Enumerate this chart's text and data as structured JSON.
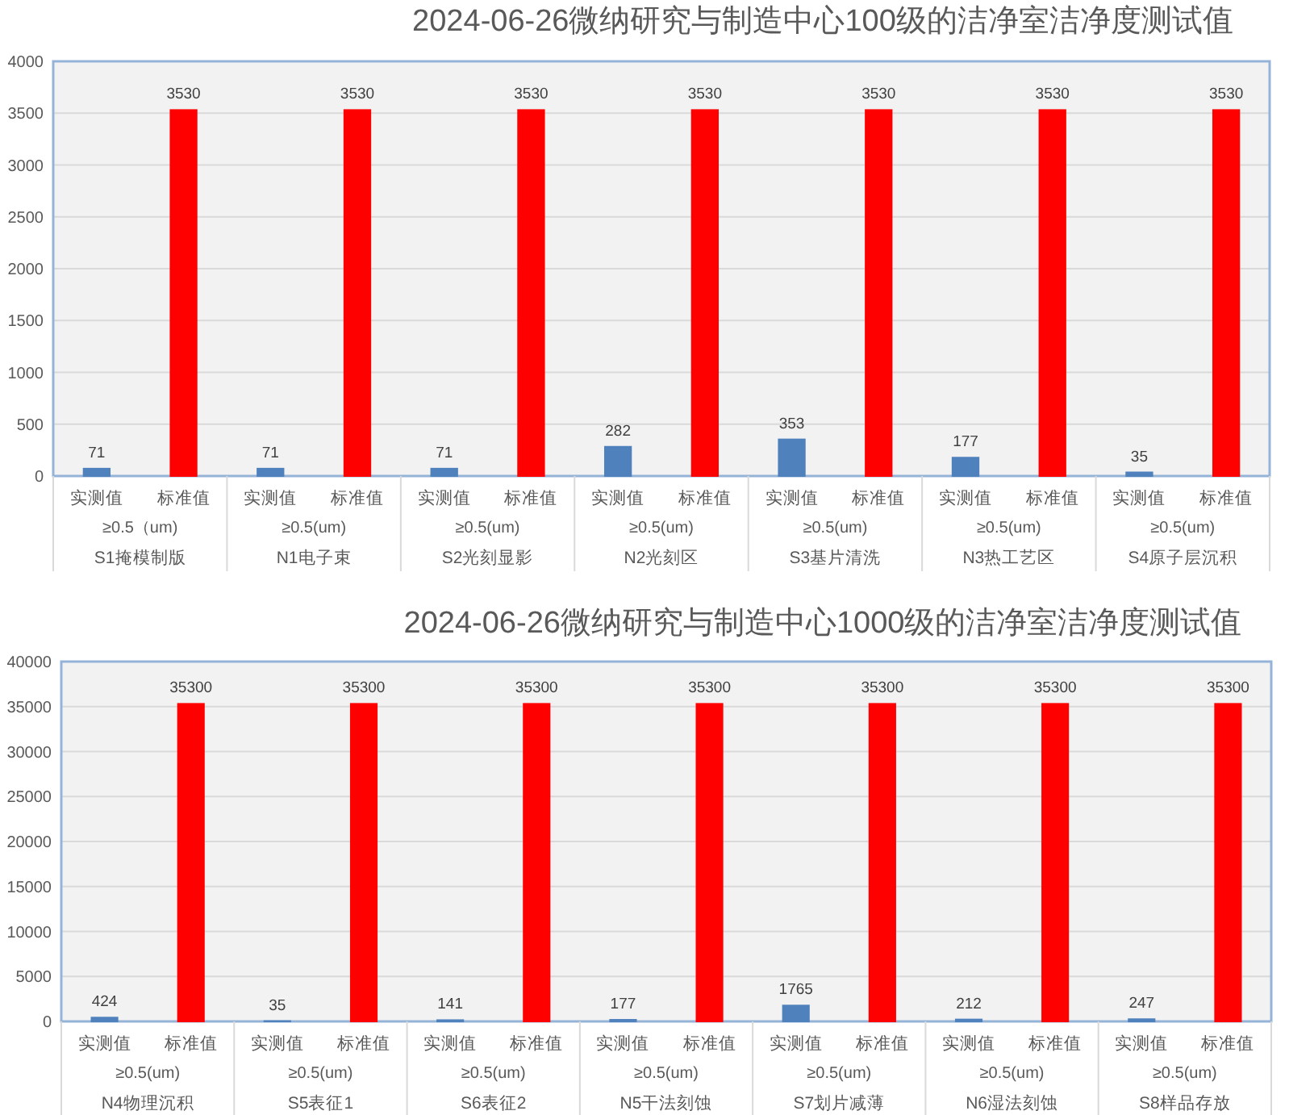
{
  "chart_data": [
    {
      "type": "bar",
      "title": "2024-06-26微纳研究与制造中心100级的洁净室洁净度测试值",
      "categories": [
        "实测值",
        "标准值",
        "实测值",
        "标准值",
        "实测值",
        "标准值",
        "实测值",
        "标准值",
        "实测值",
        "标准值",
        "实测值",
        "标准值",
        "实测值",
        "标准值"
      ],
      "values": [
        71,
        3530,
        71,
        3530,
        71,
        3530,
        282,
        3530,
        353,
        3530,
        177,
        3530,
        35,
        3530
      ],
      "colors": [
        "#4f81bd",
        "#ff0000",
        "#4f81bd",
        "#ff0000",
        "#4f81bd",
        "#ff0000",
        "#4f81bd",
        "#ff0000",
        "#4f81bd",
        "#ff0000",
        "#4f81bd",
        "#ff0000",
        "#4f81bd",
        "#ff0000"
      ],
      "ylim": [
        0,
        4000
      ],
      "yticks": [
        0,
        500,
        1000,
        1500,
        2000,
        2500,
        3000,
        3500,
        4000
      ],
      "grid": "y",
      "data_labels": true,
      "annotations": [
        "≥0.5（um)",
        "S1掩模制版",
        "≥0.5(um)",
        "N1电子束",
        "≥0.5(um)",
        "S2光刻显影",
        "≥0.5(um)",
        "N2光刻区",
        "≥0.5(um)",
        "S3基片清洗",
        "≥0.5(um)",
        "N3热工艺区",
        "≥0.5(um)",
        "S4原子层沉积"
      ]
    },
    {
      "type": "bar",
      "title": "2024-06-26微纳研究与制造中心1000级的洁净室洁净度测试值",
      "categories": [
        "实测值",
        "标准值",
        "实测值",
        "标准值",
        "实测值",
        "标准值",
        "实测值",
        "标准值",
        "实测值",
        "标准值",
        "实测值",
        "标准值",
        "实测值",
        "标准值"
      ],
      "values": [
        424,
        35300,
        35,
        35300,
        141,
        35300,
        177,
        35300,
        1765,
        35300,
        212,
        35300,
        247,
        35300
      ],
      "colors": [
        "#4f81bd",
        "#ff0000",
        "#4f81bd",
        "#ff0000",
        "#4f81bd",
        "#ff0000",
        "#4f81bd",
        "#ff0000",
        "#4f81bd",
        "#ff0000",
        "#4f81bd",
        "#ff0000",
        "#4f81bd",
        "#ff0000"
      ],
      "ylim": [
        0,
        40000
      ],
      "yticks": [
        0,
        5000,
        10000,
        15000,
        20000,
        25000,
        30000,
        35000,
        40000
      ],
      "grid": "y",
      "data_labels": true,
      "annotations": [
        "≥0.5(um)",
        "N4物理沉积",
        "≥0.5(um)",
        "S5表征1",
        "≥0.5(um)",
        "S6表征2",
        "≥0.5(um)",
        "N5干法刻蚀",
        "≥0.5(um)",
        "S7划片减薄",
        "≥0.5(um)",
        "N6湿法刻蚀",
        "≥0.5(um)",
        "S8样品存放"
      ]
    }
  ]
}
